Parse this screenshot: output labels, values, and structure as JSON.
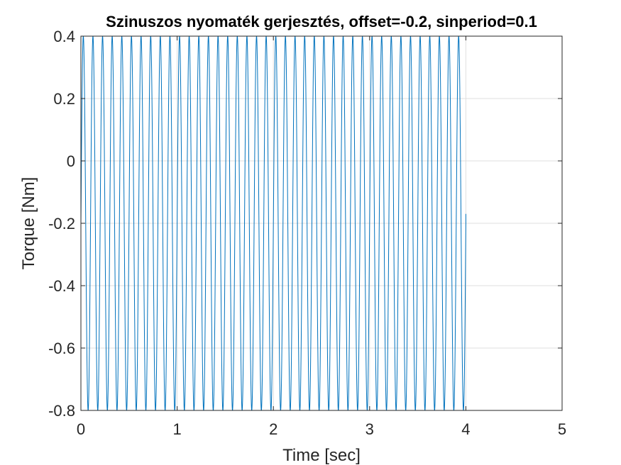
{
  "chart_data": {
    "type": "line",
    "title": "Szinuszos nyomaték gerjesztés, offset=-0.2, sinperiod=0.1",
    "xlabel": "Time [sec]",
    "ylabel": "Torque [Nm]",
    "xlim": [
      0,
      5
    ],
    "ylim": [
      -0.8,
      0.4
    ],
    "x_ticks": [
      0,
      1,
      2,
      3,
      4,
      5
    ],
    "x_tick_labels": [
      "0",
      "1",
      "2",
      "3",
      "4",
      "5"
    ],
    "y_ticks": [
      -0.8,
      -0.6,
      -0.4,
      -0.2,
      0,
      0.2,
      0.4
    ],
    "y_tick_labels": [
      "-0.8",
      "-0.6",
      "-0.4",
      "-0.2",
      "0",
      "0.2",
      "0.4"
    ],
    "grid": true,
    "series": [
      {
        "offset": -0.2,
        "amplitude": 0.6,
        "period": 0.1,
        "x_start": 0,
        "x_end": 4,
        "end_value": -0.17
      }
    ]
  },
  "colors": {
    "series": "#0072BD",
    "grid": "#DFDFDF",
    "axis": "#262626",
    "background": "#FFFFFF"
  }
}
